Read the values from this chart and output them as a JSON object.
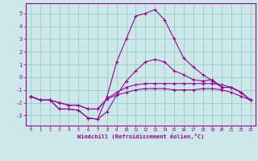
{
  "x": [
    0,
    1,
    2,
    3,
    4,
    5,
    6,
    7,
    8,
    9,
    10,
    11,
    12,
    13,
    14,
    15,
    16,
    17,
    18,
    19,
    20,
    21,
    22,
    23
  ],
  "line_peak": [
    -1.5,
    -1.8,
    -1.8,
    -2.5,
    -2.5,
    -2.6,
    -3.2,
    -3.3,
    -1.5,
    1.2,
    3.0,
    4.8,
    5.0,
    5.3,
    4.5,
    3.0,
    1.5,
    0.8,
    0.2,
    -0.3,
    -0.8,
    -0.8,
    -1.2,
    -1.8
  ],
  "line_mid1": [
    -1.5,
    -1.8,
    -1.8,
    -2.5,
    -2.5,
    -2.6,
    -3.2,
    -3.3,
    -2.7,
    -1.4,
    -0.3,
    0.5,
    1.2,
    1.4,
    1.2,
    0.5,
    0.2,
    -0.2,
    -0.3,
    -0.2,
    -0.8,
    -0.8,
    -1.2,
    -1.8
  ],
  "line_mid2": [
    -1.5,
    -1.8,
    -1.8,
    -2.0,
    -2.2,
    -2.2,
    -2.5,
    -2.5,
    -1.7,
    -1.2,
    -0.8,
    -0.6,
    -0.5,
    -0.5,
    -0.5,
    -0.5,
    -0.5,
    -0.5,
    -0.5,
    -0.5,
    -0.6,
    -0.8,
    -1.2,
    -1.8
  ],
  "line_low": [
    -1.5,
    -1.8,
    -1.8,
    -2.0,
    -2.2,
    -2.2,
    -2.5,
    -2.5,
    -1.7,
    -1.4,
    -1.2,
    -1.0,
    -0.9,
    -0.9,
    -0.9,
    -1.0,
    -1.0,
    -1.0,
    -0.9,
    -0.9,
    -1.0,
    -1.2,
    -1.5,
    -1.8
  ],
  "xlabel": "Windchill (Refroidissement éolien,°C)",
  "ylim": [
    -3.8,
    5.8
  ],
  "xlim": [
    -0.5,
    23.5
  ],
  "yticks": [
    -3,
    -2,
    -1,
    0,
    1,
    2,
    3,
    4,
    5
  ],
  "xticks": [
    0,
    1,
    2,
    3,
    4,
    5,
    6,
    7,
    8,
    9,
    10,
    11,
    12,
    13,
    14,
    15,
    16,
    17,
    18,
    19,
    20,
    21,
    22,
    23
  ],
  "line_color": "#990099",
  "bg_color": "#cce8e8",
  "grid_color": "#99cccc"
}
